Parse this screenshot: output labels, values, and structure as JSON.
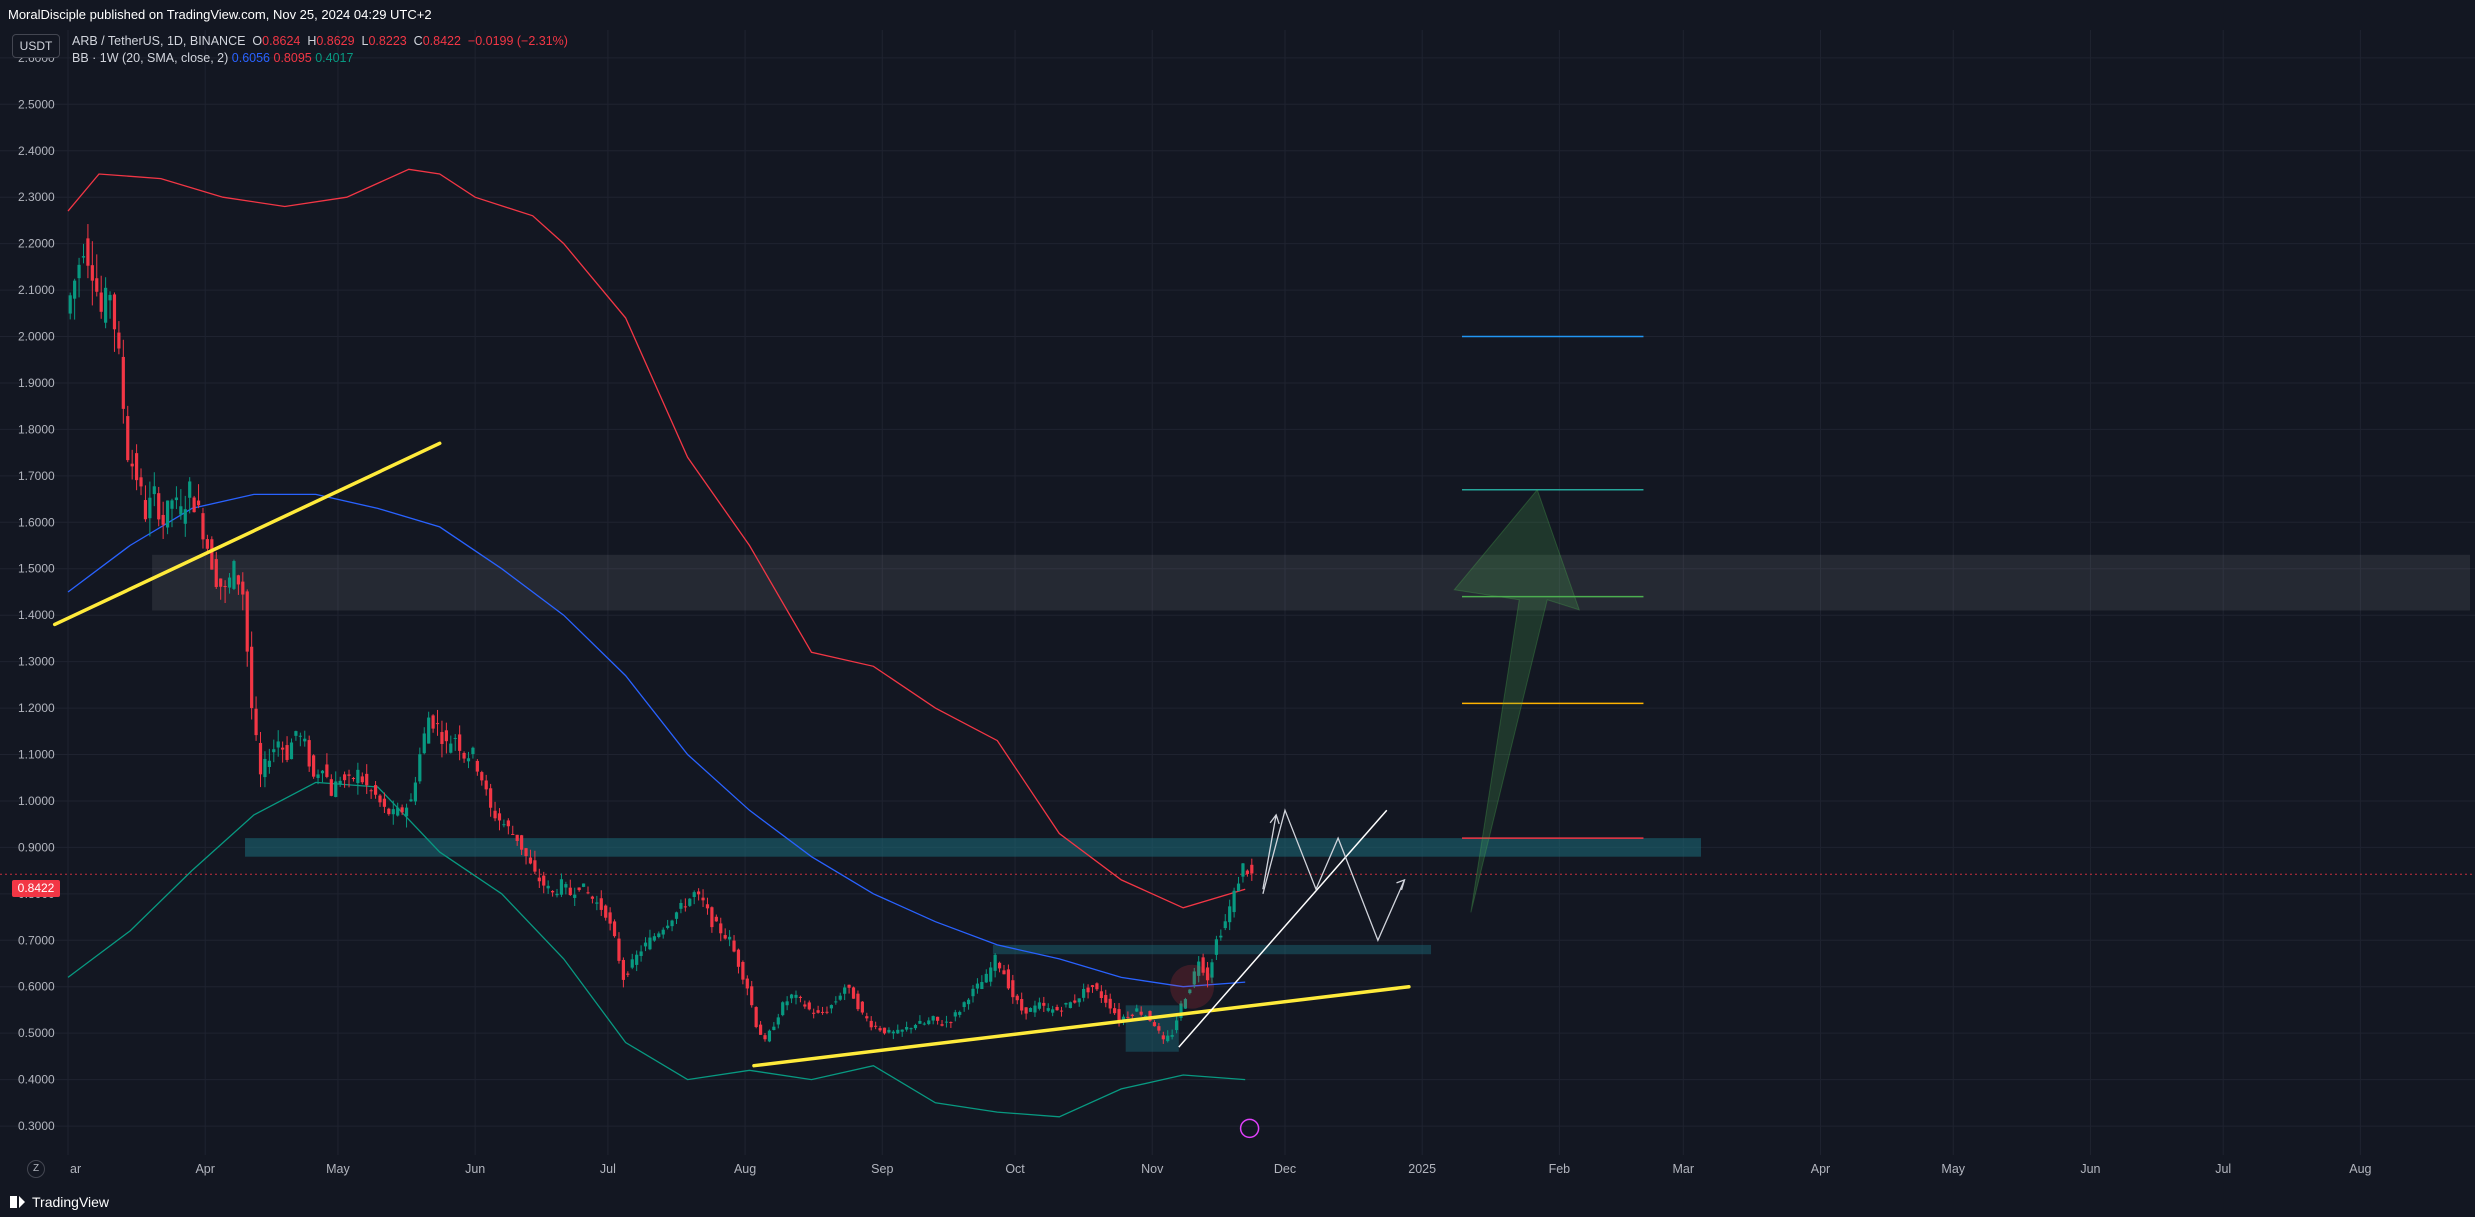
{
  "header": {
    "published": "MoralDisciple published on TradingView.com, Nov 25, 2024 04:29 UTC+2"
  },
  "legend": {
    "symbol": "ARB / TetherUS, 1D, BINANCE",
    "o_label": "O",
    "o": "0.8624",
    "h_label": "H",
    "h": "0.8629",
    "l_label": "L",
    "l": "0.8223",
    "c_label": "C",
    "c": "0.8422",
    "change": "−0.0199 (−2.31%)",
    "bb_label": "BB · 1W (20, SMA, close, 2)",
    "bb_basis": "0.6056",
    "bb_upper": "0.8095",
    "bb_lower": "0.4017"
  },
  "currency_button": "USDT",
  "price_tag": "0.8422",
  "footer": {
    "logo_text": "TradingView",
    "z_button": "Z"
  },
  "colors": {
    "background": "#131722",
    "up": "#089981",
    "down": "#f23645",
    "bb_upper": "#f23645",
    "bb_basis": "#2962ff",
    "bb_lower": "#089981",
    "trendline": "#ffeb3b"
  },
  "chart_data": {
    "type": "candlestick",
    "y_ticks": [
      "2.6000",
      "2.5000",
      "2.4000",
      "2.3000",
      "2.2000",
      "2.1000",
      "2.0000",
      "1.9000",
      "1.8000",
      "1.7000",
      "1.6000",
      "1.5000",
      "1.4000",
      "1.3000",
      "1.2000",
      "1.1000",
      "1.0000",
      "0.9000",
      "0.8000",
      "0.7000",
      "0.6000",
      "0.5000",
      "0.4000",
      "0.3000"
    ],
    "x_ticks": [
      "Mar",
      "Apr",
      "May",
      "Jun",
      "Jul",
      "Aug",
      "Sep",
      "Oct",
      "Nov",
      "Dec",
      "2025",
      "Feb",
      "Mar",
      "Apr",
      "May",
      "Jun",
      "Jul",
      "Aug"
    ],
    "ylim": [
      0.27,
      2.66
    ],
    "last_price": 0.8422,
    "price_path": [
      [
        "Mar 1",
        2.05
      ],
      [
        "Mar 3",
        2.12
      ],
      [
        "Mar 5",
        2.2
      ],
      [
        "Mar 7",
        2.15
      ],
      [
        "Mar 9",
        2.05
      ],
      [
        "Mar 11",
        2.1
      ],
      [
        "Mar 13",
        1.95
      ],
      [
        "Mar 15",
        1.75
      ],
      [
        "Mar 17",
        1.7
      ],
      [
        "Mar 19",
        1.62
      ],
      [
        "Mar 21",
        1.66
      ],
      [
        "Mar 23",
        1.6
      ],
      [
        "Mar 25",
        1.65
      ],
      [
        "Mar 27",
        1.62
      ],
      [
        "Mar 29",
        1.67
      ],
      [
        "Mar 31",
        1.62
      ],
      [
        "Apr 2",
        1.55
      ],
      [
        "Apr 4",
        1.48
      ],
      [
        "Apr 6",
        1.45
      ],
      [
        "Apr 8",
        1.5
      ],
      [
        "Apr 10",
        1.45
      ],
      [
        "Apr 12",
        1.2
      ],
      [
        "Apr 14",
        1.05
      ],
      [
        "Apr 16",
        1.1
      ],
      [
        "Apr 18",
        1.13
      ],
      [
        "Apr 20",
        1.1
      ],
      [
        "Apr 22",
        1.15
      ],
      [
        "Apr 24",
        1.12
      ],
      [
        "Apr 26",
        1.05
      ],
      [
        "Apr 28",
        1.08
      ],
      [
        "Apr 30",
        1.02
      ],
      [
        "May 2",
        1.05
      ],
      [
        "May 4",
        1.04
      ],
      [
        "May 6",
        1.06
      ],
      [
        "May 8",
        1.03
      ],
      [
        "May 10",
        1.01
      ],
      [
        "May 12",
        0.98
      ],
      [
        "May 14",
        0.97
      ],
      [
        "May 16",
        0.98
      ],
      [
        "May 18",
        1.0
      ],
      [
        "May 20",
        1.1
      ],
      [
        "May 22",
        1.18
      ],
      [
        "May 24",
        1.16
      ],
      [
        "May 26",
        1.12
      ],
      [
        "May 28",
        1.14
      ],
      [
        "May 30",
        1.1
      ],
      [
        "Jun 1",
        1.1
      ],
      [
        "Jun 3",
        1.05
      ],
      [
        "Jun 5",
        0.98
      ],
      [
        "Jun 7",
        0.96
      ],
      [
        "Jun 9",
        0.94
      ],
      [
        "Jun 11",
        0.92
      ],
      [
        "Jun 13",
        0.88
      ],
      [
        "Jun 15",
        0.84
      ],
      [
        "Jun 17",
        0.82
      ],
      [
        "Jun 19",
        0.8
      ],
      [
        "Jun 21",
        0.82
      ],
      [
        "Jun 23",
        0.8
      ],
      [
        "Jun 25",
        0.82
      ],
      [
        "Jun 27",
        0.8
      ],
      [
        "Jun 29",
        0.78
      ],
      [
        "Jul 1",
        0.76
      ],
      [
        "Jul 3",
        0.7
      ],
      [
        "Jul 5",
        0.62
      ],
      [
        "Jul 7",
        0.65
      ],
      [
        "Jul 9",
        0.68
      ],
      [
        "Jul 11",
        0.7
      ],
      [
        "Jul 13",
        0.72
      ],
      [
        "Jul 15",
        0.74
      ],
      [
        "Jul 17",
        0.76
      ],
      [
        "Jul 19",
        0.78
      ],
      [
        "Jul 21",
        0.8
      ],
      [
        "Jul 23",
        0.78
      ],
      [
        "Jul 25",
        0.74
      ],
      [
        "Jul 27",
        0.72
      ],
      [
        "Jul 29",
        0.7
      ],
      [
        "Jul 31",
        0.65
      ],
      [
        "Aug 2",
        0.6
      ],
      [
        "Aug 4",
        0.52
      ],
      [
        "Aug 6",
        0.48
      ],
      [
        "Aug 8",
        0.52
      ],
      [
        "Aug 10",
        0.56
      ],
      [
        "Aug 12",
        0.58
      ],
      [
        "Aug 14",
        0.57
      ],
      [
        "Aug 16",
        0.55
      ],
      [
        "Aug 18",
        0.54
      ],
      [
        "Aug 20",
        0.55
      ],
      [
        "Aug 22",
        0.57
      ],
      [
        "Aug 24",
        0.6
      ],
      [
        "Aug 26",
        0.58
      ],
      [
        "Aug 28",
        0.54
      ],
      [
        "Aug 30",
        0.52
      ],
      [
        "Sep 1",
        0.51
      ],
      [
        "Sep 3",
        0.5
      ],
      [
        "Sep 5",
        0.5
      ],
      [
        "Sep 7",
        0.51
      ],
      [
        "Sep 9",
        0.52
      ],
      [
        "Sep 11",
        0.52
      ],
      [
        "Sep 13",
        0.53
      ],
      [
        "Sep 15",
        0.52
      ],
      [
        "Sep 17",
        0.53
      ],
      [
        "Sep 19",
        0.55
      ],
      [
        "Sep 21",
        0.58
      ],
      [
        "Sep 23",
        0.6
      ],
      [
        "Sep 25",
        0.62
      ],
      [
        "Sep 27",
        0.66
      ],
      [
        "Sep 29",
        0.63
      ],
      [
        "Oct 1",
        0.58
      ],
      [
        "Oct 3",
        0.55
      ],
      [
        "Oct 5",
        0.55
      ],
      [
        "Oct 7",
        0.56
      ],
      [
        "Oct 9",
        0.55
      ],
      [
        "Oct 11",
        0.55
      ],
      [
        "Oct 13",
        0.56
      ],
      [
        "Oct 15",
        0.57
      ],
      [
        "Oct 17",
        0.59
      ],
      [
        "Oct 19",
        0.6
      ],
      [
        "Oct 21",
        0.58
      ],
      [
        "Oct 23",
        0.56
      ],
      [
        "Oct 25",
        0.53
      ],
      [
        "Oct 27",
        0.54
      ],
      [
        "Oct 29",
        0.55
      ],
      [
        "Oct 31",
        0.54
      ],
      [
        "Nov 2",
        0.52
      ],
      [
        "Nov 4",
        0.48
      ],
      [
        "Nov 6",
        0.5
      ],
      [
        "Nov 8",
        0.56
      ],
      [
        "Nov 10",
        0.6
      ],
      [
        "Nov 12",
        0.66
      ],
      [
        "Nov 14",
        0.62
      ],
      [
        "Nov 16",
        0.7
      ],
      [
        "Nov 18",
        0.74
      ],
      [
        "Nov 20",
        0.8
      ],
      [
        "Nov 22",
        0.86
      ],
      [
        "Nov 24",
        0.84
      ]
    ],
    "bb_upper_path": [
      [
        "Mar 1",
        2.27
      ],
      [
        "Mar 8",
        2.35
      ],
      [
        "Mar 22",
        2.34
      ],
      [
        "Apr 5",
        2.3
      ],
      [
        "Apr 19",
        2.28
      ],
      [
        "May 3",
        2.3
      ],
      [
        "May 17",
        2.36
      ],
      [
        "May 24",
        2.35
      ],
      [
        "Jun 1",
        2.3
      ],
      [
        "Jun 14",
        2.26
      ],
      [
        "Jun 21",
        2.2
      ],
      [
        "Jul 5",
        2.04
      ],
      [
        "Jul 19",
        1.74
      ],
      [
        "Aug 2",
        1.55
      ],
      [
        "Aug 16",
        1.32
      ],
      [
        "Aug 30",
        1.29
      ],
      [
        "Sep 13",
        1.2
      ],
      [
        "Sep 27",
        1.13
      ],
      [
        "Oct 11",
        0.93
      ],
      [
        "Oct 25",
        0.83
      ],
      [
        "Nov 8",
        0.77
      ],
      [
        "Nov 22",
        0.81
      ]
    ],
    "bb_basis_path": [
      [
        "Mar 1",
        1.45
      ],
      [
        "Mar 15",
        1.55
      ],
      [
        "Mar 29",
        1.63
      ],
      [
        "Apr 12",
        1.66
      ],
      [
        "Apr 26",
        1.66
      ],
      [
        "May 10",
        1.63
      ],
      [
        "May 24",
        1.59
      ],
      [
        "Jun 7",
        1.5
      ],
      [
        "Jun 21",
        1.4
      ],
      [
        "Jul 5",
        1.27
      ],
      [
        "Jul 19",
        1.1
      ],
      [
        "Aug 2",
        0.98
      ],
      [
        "Aug 16",
        0.88
      ],
      [
        "Aug 30",
        0.8
      ],
      [
        "Sep 13",
        0.74
      ],
      [
        "Sep 27",
        0.69
      ],
      [
        "Oct 11",
        0.66
      ],
      [
        "Oct 25",
        0.62
      ],
      [
        "Nov 8",
        0.6
      ],
      [
        "Nov 22",
        0.61
      ]
    ],
    "bb_lower_path": [
      [
        "Mar 1",
        0.62
      ],
      [
        "Mar 15",
        0.72
      ],
      [
        "Mar 29",
        0.85
      ],
      [
        "Apr 12",
        0.97
      ],
      [
        "Apr 26",
        1.04
      ],
      [
        "May 10",
        1.03
      ],
      [
        "May 24",
        0.89
      ],
      [
        "Jun 7",
        0.8
      ],
      [
        "Jun 21",
        0.66
      ],
      [
        "Jul 5",
        0.48
      ],
      [
        "Jul 19",
        0.4
      ],
      [
        "Aug 2",
        0.42
      ],
      [
        "Aug 16",
        0.4
      ],
      [
        "Aug 30",
        0.43
      ],
      [
        "Sep 13",
        0.35
      ],
      [
        "Sep 27",
        0.33
      ],
      [
        "Oct 11",
        0.32
      ],
      [
        "Oct 25",
        0.38
      ],
      [
        "Nov 8",
        0.41
      ],
      [
        "Nov 22",
        0.4
      ]
    ],
    "annotations": {
      "yellow_trendlines": [
        [
          [
            "Feb 27",
            1.38
          ],
          [
            "May 24",
            1.77
          ]
        ],
        [
          [
            "Aug 3",
            0.43
          ],
          [
            "Dec 29",
            0.6
          ]
        ]
      ],
      "white_trendline": [
        [
          "Nov 7",
          0.47
        ],
        [
          "Dec 24",
          0.98
        ]
      ],
      "white_zigzag": [
        [
          "Nov 26",
          0.8
        ],
        [
          "Dec 1",
          0.98
        ],
        [
          "Dec 8",
          0.81
        ],
        [
          "Dec 13",
          0.92
        ],
        [
          "Dec 22",
          0.7
        ],
        [
          "Dec 28",
          0.83
        ]
      ],
      "white_arrow": [
        [
          "Nov 26",
          0.81
        ],
        [
          "Nov 29",
          0.97
        ]
      ],
      "zones": [
        {
          "x": [
            "Mar 20",
            "Aug 31, 2025"
          ],
          "y": [
            1.41,
            1.53
          ],
          "color": "#ffffff",
          "opacity": 0.08
        },
        {
          "x": [
            "Apr 10",
            "Mar 5, 2025"
          ],
          "y": [
            0.88,
            0.92
          ],
          "color": "#1b6b7a",
          "opacity": 0.55
        },
        {
          "x": [
            "Sep 26",
            "Jan 3, 2025"
          ],
          "y": [
            0.67,
            0.69
          ],
          "color": "#1b6b7a",
          "opacity": 0.45
        },
        {
          "x": [
            "Oct 26",
            "Nov 7"
          ],
          "y": [
            0.46,
            0.56
          ],
          "color": "#1b6b7a",
          "opacity": 0.45
        }
      ],
      "target_levels": [
        {
          "y": 2.0,
          "color": "#2196f3"
        },
        {
          "y": 1.67,
          "color": "#26a69a"
        },
        {
          "y": 1.44,
          "color": "#4caf50"
        },
        {
          "y": 1.21,
          "color": "#ffb300"
        },
        {
          "y": 0.92,
          "color": "#f23645"
        }
      ],
      "target_x": [
        "Jan 10, 2025",
        "Feb 20, 2025"
      ],
      "green_arrow": {
        "from": [
          "Jan 12, 2025",
          0.76
        ],
        "to": [
          "Jan 27, 2025",
          1.67
        ],
        "color": "#4caf50"
      }
    }
  }
}
